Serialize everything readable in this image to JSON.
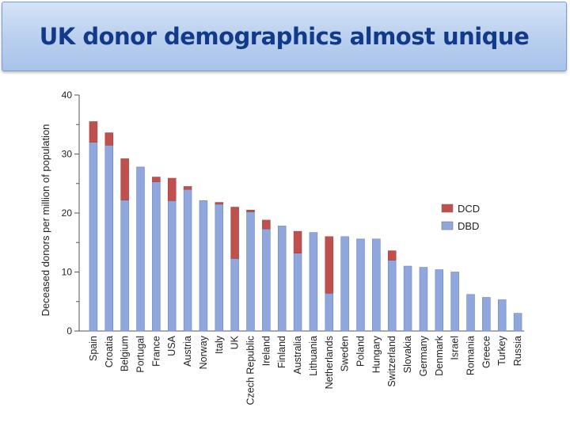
{
  "slide": {
    "title": "UK donor demographics almost unique"
  },
  "chart_data": {
    "type": "bar",
    "stacked": true,
    "ylabel": "Deceased donors per million of population",
    "xlabel": "",
    "ylim": [
      0,
      40
    ],
    "yticks": [
      0,
      10,
      20,
      30,
      40
    ],
    "grid": false,
    "legend_position": "right",
    "categories": [
      "Spain",
      "Croatia",
      "Belgium",
      "Portugal",
      "France",
      "USA",
      "Austria",
      "Norway",
      "Italy",
      "UK",
      "Czech Republic",
      "Ireland",
      "Finland",
      "Australia",
      "Lithuania",
      "Netherlands",
      "Sweden",
      "Poland",
      "Hungary",
      "Switzerland",
      "Slovakia",
      "Germany",
      "Denmark",
      "Israel",
      "Romania",
      "Greece",
      "Turkey",
      "Russia"
    ],
    "series": [
      {
        "name": "DBD",
        "color": "#8fa7dc",
        "values": [
          32.0,
          31.5,
          22.2,
          27.8,
          25.3,
          22.1,
          24.0,
          22.1,
          21.5,
          12.3,
          20.2,
          17.3,
          17.8,
          13.2,
          16.7,
          6.4,
          16.0,
          15.6,
          15.6,
          12.0,
          11.0,
          10.8,
          10.4,
          10.0,
          6.2,
          5.7,
          5.3,
          3.0
        ]
      },
      {
        "name": "DCD",
        "color": "#c0504d",
        "values": [
          3.5,
          2.1,
          7.0,
          0.0,
          0.8,
          3.8,
          0.5,
          0.0,
          0.3,
          8.7,
          0.3,
          1.5,
          0.0,
          3.7,
          0.0,
          9.6,
          0.0,
          0.0,
          0.0,
          1.6,
          0.0,
          0.0,
          0.0,
          0.0,
          0.0,
          0.0,
          0.0,
          0.0
        ]
      }
    ]
  }
}
